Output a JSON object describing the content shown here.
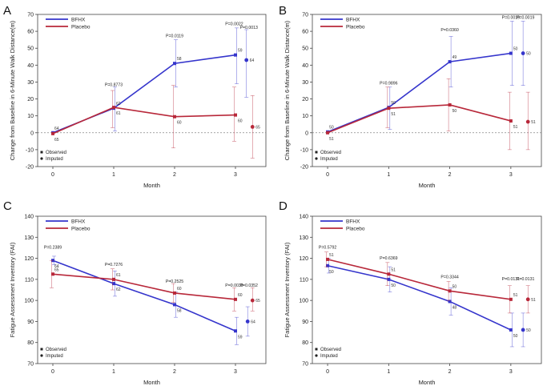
{
  "series_colors": {
    "BFHX": "#3535cc",
    "Placebo": "#b8283a"
  },
  "legend_labels": [
    "BFHX",
    "Placebo"
  ],
  "note_labels": {
    "observed": "Observed",
    "imputed": "Imputed"
  },
  "chart_data": [
    {
      "type": "line",
      "panel_letter": "A",
      "xlabel": "Month",
      "ylabel": "Change from Baseline in 6-Minute Walk Distance(m)",
      "ylim": [
        -20,
        70
      ],
      "yticks": [
        -20,
        -10,
        0,
        10,
        20,
        30,
        40,
        50,
        60,
        70
      ],
      "categories": [
        "0",
        "1",
        "2",
        "3"
      ],
      "series": [
        {
          "name": "BFHX",
          "x": [
            0,
            1,
            2,
            3
          ],
          "values": [
            0,
            14.5,
            41,
            46
          ],
          "err_low": [
            0,
            1,
            27,
            29
          ],
          "err_high": [
            0,
            27,
            55,
            62
          ],
          "n": [
            "64",
            "62",
            "58",
            "59"
          ]
        },
        {
          "name": "Placebo",
          "x": [
            0,
            1,
            2,
            3
          ],
          "values": [
            -0.5,
            15,
            9.5,
            10.5
          ],
          "err_low": [
            0,
            3,
            -9,
            -5
          ],
          "err_high": [
            0,
            25,
            28,
            27
          ],
          "n": [
            "65",
            "61",
            "60",
            "60"
          ]
        }
      ],
      "imputed": [
        {
          "name": "BFHX",
          "x": 3.18,
          "value": 43,
          "err_low": 21,
          "err_high": 61,
          "n": "64"
        },
        {
          "name": "Placebo",
          "x": 3.28,
          "value": 3.5,
          "err_low": -15,
          "err_high": 22,
          "n": "65"
        }
      ],
      "pvalues": [
        {
          "text": "P=0.8773",
          "x": 1.0,
          "y": 27.5
        },
        {
          "text": "P=0.0119",
          "x": 2.0,
          "y": 56.5
        },
        {
          "text": "P=0.0022",
          "x": 2.98,
          "y": 63.5
        },
        {
          "text": "P=0.0013",
          "x": 3.22,
          "y": 61.5
        }
      ],
      "show_legend": true,
      "show_notes": true
    },
    {
      "type": "line",
      "panel_letter": "B",
      "xlabel": "Month",
      "ylabel": "Change from Baseline in 6-Minute Walk Distance(m)",
      "ylim": [
        -20,
        70
      ],
      "yticks": [
        -20,
        -10,
        0,
        10,
        20,
        30,
        40,
        50,
        60,
        70
      ],
      "categories": [
        "0",
        "1",
        "2",
        "3"
      ],
      "series": [
        {
          "name": "BFHX",
          "x": [
            0,
            1,
            2,
            3
          ],
          "values": [
            0.5,
            15,
            42,
            47
          ],
          "err_low": [
            0,
            2,
            27,
            28
          ],
          "err_high": [
            0,
            27,
            57,
            66
          ],
          "n": [
            "50",
            "50",
            "49",
            "50"
          ]
        },
        {
          "name": "Placebo",
          "x": [
            0,
            1,
            2,
            3
          ],
          "values": [
            0,
            14.5,
            16.5,
            7
          ],
          "err_low": [
            0,
            3,
            1,
            -10
          ],
          "err_high": [
            0,
            27,
            32,
            24
          ],
          "n": [
            "51",
            "51",
            "50",
            "51"
          ]
        }
      ],
      "imputed": [
        {
          "name": "BFHX",
          "x": 3.2,
          "value": 47,
          "err_low": 28,
          "err_high": 66,
          "n": "50"
        },
        {
          "name": "Placebo",
          "x": 3.28,
          "value": 6.5,
          "err_low": -10,
          "err_high": 24,
          "n": "51"
        }
      ],
      "pvalues": [
        {
          "text": "P=0.9896",
          "x": 1.0,
          "y": 28.5
        },
        {
          "text": "P=0.0360",
          "x": 2.0,
          "y": 60.0
        },
        {
          "text": "P=0.0019",
          "x": 3.0,
          "y": 67.5
        },
        {
          "text": "P=0.0019",
          "x": 3.24,
          "y": 67.5
        }
      ],
      "show_legend": true,
      "show_notes": true
    },
    {
      "type": "line",
      "panel_letter": "C",
      "xlabel": "Month",
      "ylabel": "Fatigue Assessment Inventory (FAI)",
      "ylim": [
        70,
        140
      ],
      "yticks": [
        70,
        80,
        90,
        100,
        110,
        120,
        130,
        140
      ],
      "categories": [
        "0",
        "1",
        "2",
        "3"
      ],
      "series": [
        {
          "name": "BFHX",
          "x": [
            0,
            1,
            2,
            3
          ],
          "values": [
            119,
            108,
            98,
            85.5
          ],
          "err_low": [
            117,
            102,
            92,
            79
          ],
          "err_high": [
            121,
            114,
            104,
            92
          ],
          "n": [
            "64",
            "62",
            "58",
            "59"
          ]
        },
        {
          "name": "Placebo",
          "x": [
            0,
            1,
            2,
            3
          ],
          "values": [
            112.5,
            110,
            103.5,
            100.5
          ],
          "err_low": [
            106,
            105,
            99,
            95
          ],
          "err_high": [
            119,
            115,
            108,
            106
          ],
          "n": [
            "65",
            "61",
            "60",
            "60"
          ]
        }
      ],
      "imputed": [
        {
          "name": "BFHX",
          "x": 3.2,
          "value": 90,
          "err_low": 83,
          "err_high": 97,
          "n": "64"
        },
        {
          "name": "Placebo",
          "x": 3.28,
          "value": 100,
          "err_low": 95,
          "err_high": 106,
          "n": "65"
        }
      ],
      "pvalues": [
        {
          "text": "P=0.2389",
          "x": 0.0,
          "y": 124.5
        },
        {
          "text": "P=0.7276",
          "x": 1.0,
          "y": 116.5
        },
        {
          "text": "P=0.2525",
          "x": 2.0,
          "y": 108.5
        },
        {
          "text": "P=0.0039",
          "x": 2.98,
          "y": 106.5
        },
        {
          "text": "P=0.0352",
          "x": 3.22,
          "y": 106.5
        }
      ],
      "show_legend": true,
      "show_notes": true
    },
    {
      "type": "line",
      "panel_letter": "D",
      "xlabel": "Month",
      "ylabel": "Fatigue Assessment Inventory (FAI)",
      "ylim": [
        70,
        140
      ],
      "yticks": [
        70,
        80,
        90,
        100,
        110,
        120,
        130,
        140
      ],
      "categories": [
        "0",
        "1",
        "2",
        "3"
      ],
      "series": [
        {
          "name": "BFHX",
          "x": [
            0,
            1,
            2,
            3
          ],
          "values": [
            116.5,
            110,
            99.5,
            86
          ],
          "err_low": [
            113,
            104,
            93,
            78
          ],
          "err_high": [
            120,
            116,
            106,
            94
          ],
          "n": [
            "50",
            "50",
            "48",
            "50"
          ]
        },
        {
          "name": "Placebo",
          "x": [
            0,
            1,
            2,
            3
          ],
          "values": [
            119.5,
            112.5,
            104.5,
            100.5
          ],
          "err_low": [
            116,
            107,
            100,
            94
          ],
          "err_high": [
            123,
            118,
            109,
            107
          ],
          "n": [
            "51",
            "51",
            "50",
            "51"
          ]
        }
      ],
      "imputed": [
        {
          "name": "BFHX",
          "x": 3.2,
          "value": 86,
          "err_low": 78,
          "err_high": 94,
          "n": "50"
        },
        {
          "name": "Placebo",
          "x": 3.28,
          "value": 100.5,
          "err_low": 94,
          "err_high": 107,
          "n": "51"
        }
      ],
      "pvalues": [
        {
          "text": "P=0.5792",
          "x": 0.0,
          "y": 124.5
        },
        {
          "text": "P=0.6369",
          "x": 1.0,
          "y": 119.5
        },
        {
          "text": "P=0.3344",
          "x": 2.0,
          "y": 110.5
        },
        {
          "text": "P=0.0131",
          "x": 3.0,
          "y": 109.5
        },
        {
          "text": "P=0.0131",
          "x": 3.24,
          "y": 109.5
        }
      ],
      "show_legend": true,
      "show_notes": true
    }
  ]
}
